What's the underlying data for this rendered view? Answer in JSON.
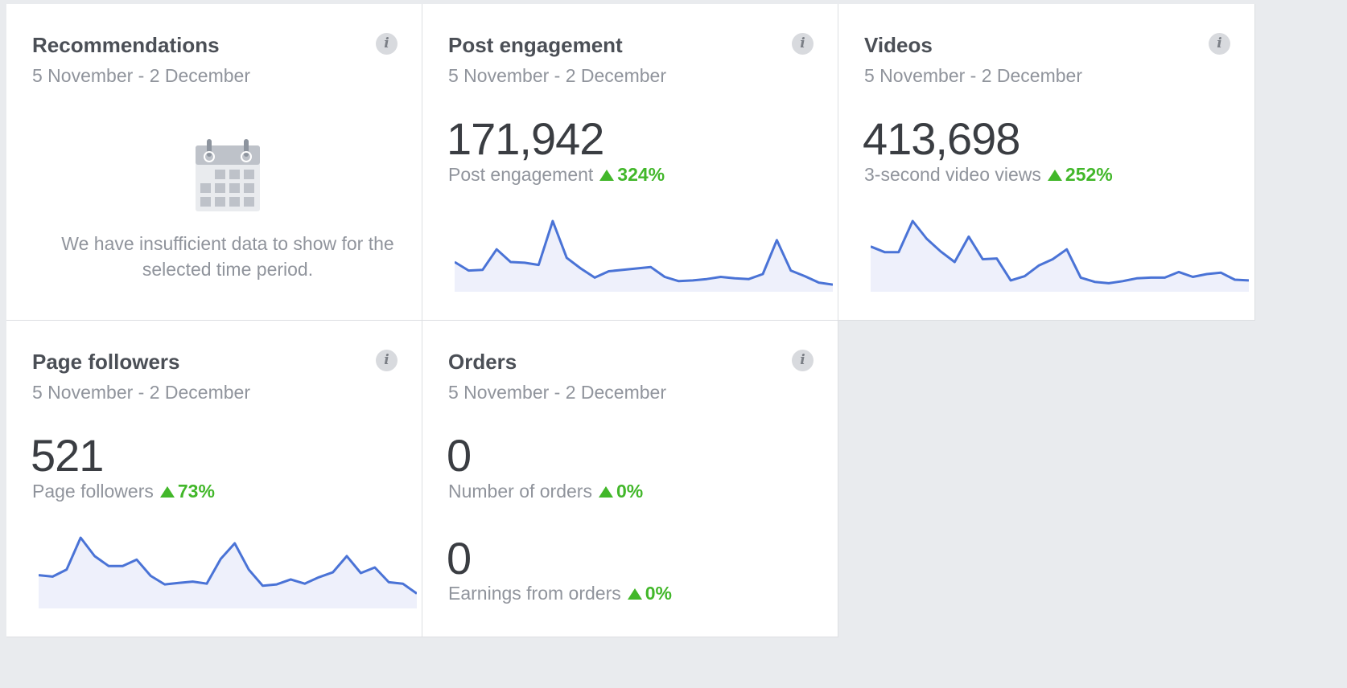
{
  "cards": {
    "recommendations": {
      "title": "Recommendations",
      "range": "5 November - 2 December",
      "empty_message": "We have insufficient data to show for the selected time period.",
      "info_icon": "i"
    },
    "post_engagement": {
      "title": "Post engagement",
      "range": "5 November - 2 December",
      "value": "171,942",
      "metric_label": "Post engagement",
      "change": "324%",
      "info_icon": "i",
      "sparkline": [
        0.42,
        0.3,
        0.31,
        0.6,
        0.42,
        0.41,
        0.38,
        1.0,
        0.48,
        0.33,
        0.2,
        0.29,
        0.31,
        0.33,
        0.35,
        0.21,
        0.15,
        0.16,
        0.18,
        0.21,
        0.19,
        0.18,
        0.25,
        0.73,
        0.3,
        0.22,
        0.13,
        0.1
      ]
    },
    "videos": {
      "title": "Videos",
      "range": "5 November - 2 December",
      "value": "413,698",
      "metric_label": "3-second video views",
      "change": "252%",
      "info_icon": "i",
      "sparkline": [
        0.64,
        0.56,
        0.56,
        1.0,
        0.75,
        0.57,
        0.42,
        0.78,
        0.46,
        0.47,
        0.16,
        0.22,
        0.37,
        0.46,
        0.6,
        0.2,
        0.14,
        0.12,
        0.15,
        0.19,
        0.2,
        0.2,
        0.28,
        0.21,
        0.25,
        0.27,
        0.17,
        0.16
      ]
    },
    "page_followers": {
      "title": "Page followers",
      "range": "5 November - 2 December",
      "value": "521",
      "metric_label": "Page followers",
      "change": "73%",
      "info_icon": "i",
      "sparkline": [
        0.47,
        0.45,
        0.55,
        1.0,
        0.74,
        0.6,
        0.6,
        0.69,
        0.46,
        0.34,
        0.36,
        0.38,
        0.35,
        0.7,
        0.92,
        0.55,
        0.32,
        0.34,
        0.41,
        0.35,
        0.44,
        0.51,
        0.74,
        0.5,
        0.58,
        0.37,
        0.35,
        0.21
      ]
    },
    "orders": {
      "title": "Orders",
      "range": "5 November - 2 December",
      "value": "0",
      "metric_label": "Number of orders",
      "change": "0%",
      "value2": "0",
      "metric_label2": "Earnings from orders",
      "change2": "0%",
      "info_icon": "i"
    }
  },
  "colors": {
    "line": "#4a73d6",
    "fill": "#eef0fb",
    "positive": "#42b72a"
  },
  "icons": {
    "info": "info-icon",
    "calendar": "calendar-icon",
    "trend_up": "triangle-up-icon"
  }
}
